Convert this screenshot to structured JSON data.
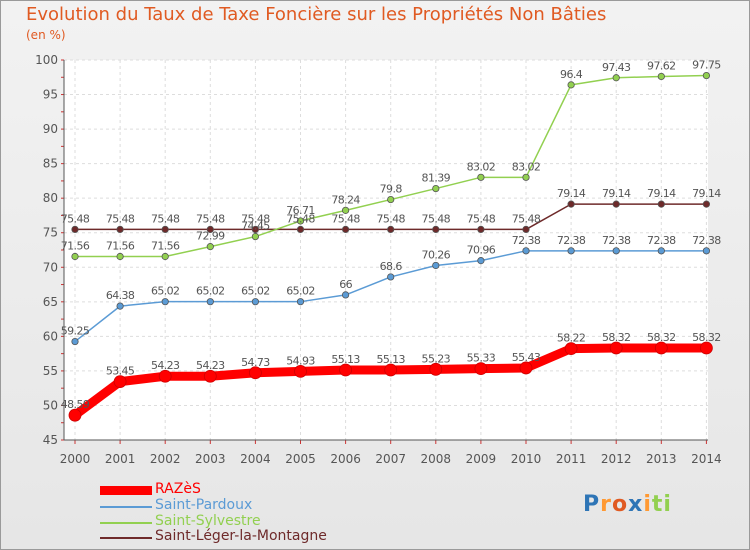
{
  "chart_data": {
    "type": "line",
    "title": "Evolution du Taux de Taxe Foncière sur les Propriétés Non Bâties",
    "ylabel": "(en %)",
    "xlabel": "",
    "ylim": [
      45,
      100
    ],
    "yticks": [
      45,
      50,
      55,
      60,
      65,
      70,
      75,
      80,
      85,
      90,
      95,
      100
    ],
    "categories": [
      "2000",
      "2001",
      "2002",
      "2003",
      "2004",
      "2005",
      "2006",
      "2007",
      "2008",
      "2009",
      "2010",
      "2011",
      "2012",
      "2013",
      "2014"
    ],
    "series": [
      {
        "name": "Saint-Léger-la-Montagne",
        "color": "#6e2a2a",
        "values": [
          75.48,
          75.48,
          75.48,
          75.48,
          75.48,
          75.48,
          75.48,
          75.48,
          75.48,
          75.48,
          75.48,
          79.14,
          79.14,
          79.14,
          79.14
        ],
        "labels": [
          "75.48",
          "75.48",
          "75.48",
          "75.48",
          "75.48",
          "75.48",
          "75.48",
          "75.48",
          "75.48",
          "75.48",
          "75.48",
          "79.14",
          "79.14",
          "79.14",
          "79.14"
        ]
      },
      {
        "name": "Saint-Sylvestre",
        "color": "#92d050",
        "values": [
          71.56,
          71.56,
          71.56,
          72.99,
          74.45,
          76.71,
          78.24,
          79.8,
          81.39,
          83.02,
          83.02,
          96.4,
          97.43,
          97.62,
          97.75
        ],
        "labels": [
          "71.56",
          "71.56",
          "71.56",
          "72.99",
          "74.45",
          "76.71",
          "78.24",
          "79.8",
          "81.39",
          "83.02",
          "83.02",
          "96.4",
          "97.43",
          "97.62",
          "97.75"
        ]
      },
      {
        "name": "Saint-Pardoux",
        "color": "#5b9bd5",
        "values": [
          59.25,
          64.38,
          65.02,
          65.02,
          65.02,
          65.02,
          66,
          68.6,
          70.26,
          70.96,
          72.38,
          72.38,
          72.38,
          72.38,
          72.38
        ],
        "labels": [
          "59.25",
          "64.38",
          "65.02",
          "65.02",
          "65.02",
          "65.02",
          "66",
          "68.6",
          "70.26",
          "70.96",
          "72.38",
          "72.38",
          "72.38",
          "72.38",
          "72.38"
        ]
      },
      {
        "name": "RAZèS",
        "color": "#ff0000",
        "values": [
          48.59,
          53.45,
          54.23,
          54.23,
          54.73,
          54.93,
          55.13,
          55.13,
          55.23,
          55.33,
          55.43,
          58.22,
          58.32,
          58.32,
          58.32
        ],
        "labels": [
          "48.59",
          "53.45",
          "54.23",
          "54.23",
          "54.73",
          "54.93",
          "55.13",
          "55.13",
          "55.23",
          "55.33",
          "55.43",
          "58.22",
          "58.32",
          "58.32",
          "58.32"
        ]
      }
    ]
  },
  "legend": [
    {
      "label": "RAZèS",
      "color": "#ff0000"
    },
    {
      "label": "Saint-Pardoux",
      "color": "#5b9bd5"
    },
    {
      "label": "Saint-Sylvestre",
      "color": "#92d050"
    },
    {
      "label": "Saint-Léger-la-Montagne",
      "color": "#6e2a2a"
    }
  ],
  "logo": {
    "letters": [
      "P",
      "r",
      "o",
      "x",
      "i",
      "t",
      "i"
    ],
    "colors": [
      "#2e75b6",
      "#ff9933",
      "#e05a22",
      "#2e75b6",
      "#ff9933",
      "#92d050",
      "#92d050"
    ]
  }
}
